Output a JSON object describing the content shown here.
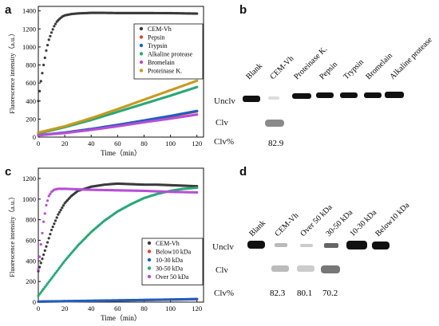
{
  "panels": {
    "a": "a",
    "b": "b",
    "c": "c",
    "d": "d"
  },
  "chart_data": [
    {
      "panel": "a",
      "type": "scatter",
      "title": "",
      "xlabel": "Time（min）",
      "ylabel": "Fluorescence intensity（a.u.）",
      "xlim": [
        0,
        125
      ],
      "ylim": [
        0,
        1450
      ],
      "xticks": [
        "0",
        "20",
        "40",
        "60",
        "80",
        "100",
        "120"
      ],
      "yticks": [
        "0",
        "200",
        "400",
        "600",
        "800",
        "1000",
        "1200",
        "1400"
      ],
      "legend_position": "top-right",
      "series": [
        {
          "name": "CEM-Vh",
          "color": "#3a3a3a",
          "x": [
            0,
            2,
            4,
            6,
            8,
            10,
            12,
            14,
            16,
            18,
            20,
            25,
            30,
            40,
            50,
            60,
            80,
            100,
            120
          ],
          "y": [
            400,
            620,
            800,
            960,
            1080,
            1160,
            1230,
            1280,
            1310,
            1335,
            1350,
            1365,
            1372,
            1378,
            1378,
            1376,
            1376,
            1375,
            1370
          ]
        },
        {
          "name": "Pepsin",
          "color": "#e0452b",
          "x": [
            0,
            20,
            40,
            60,
            80,
            100,
            120
          ],
          "y": [
            20,
            50,
            90,
            135,
            180,
            230,
            285
          ]
        },
        {
          "name": "Trypsin",
          "color": "#1f5fbf",
          "x": [
            0,
            20,
            40,
            60,
            80,
            100,
            120
          ],
          "y": [
            20,
            50,
            90,
            135,
            185,
            235,
            290
          ]
        },
        {
          "name": "Alkaline protease",
          "color": "#2aa876",
          "x": [
            0,
            20,
            40,
            60,
            80,
            100,
            120
          ],
          "y": [
            40,
            110,
            190,
            280,
            370,
            460,
            555
          ]
        },
        {
          "name": "Bromelain",
          "color": "#b64fd6",
          "x": [
            0,
            20,
            40,
            60,
            80,
            100,
            120
          ],
          "y": [
            20,
            45,
            80,
            120,
            165,
            205,
            250
          ]
        },
        {
          "name": "Proteinase K.",
          "color": "#c79a1e",
          "x": [
            0,
            20,
            40,
            60,
            80,
            100,
            120
          ],
          "y": [
            50,
            120,
            210,
            310,
            415,
            520,
            625
          ]
        }
      ]
    },
    {
      "panel": "c",
      "type": "scatter",
      "title": "",
      "xlabel": "Time（min）",
      "ylabel": "Fluorescence intensity（a.u.）",
      "xlim": [
        0,
        125
      ],
      "ylim": [
        0,
        1300
      ],
      "xticks": [
        "0",
        "20",
        "40",
        "60",
        "80",
        "100",
        "120"
      ],
      "yticks": [
        "0",
        "200",
        "400",
        "600",
        "800",
        "1000",
        "1200"
      ],
      "legend_position": "bottom-right",
      "series": [
        {
          "name": "CEM-Vh",
          "color": "#3a3a3a",
          "x": [
            0,
            3,
            6,
            10,
            15,
            20,
            25,
            30,
            40,
            50,
            60,
            70,
            80,
            90,
            100,
            110,
            120
          ],
          "y": [
            300,
            420,
            540,
            700,
            850,
            960,
            1030,
            1080,
            1120,
            1140,
            1150,
            1145,
            1140,
            1140,
            1135,
            1130,
            1125
          ]
        },
        {
          "name": "Below10 kDa",
          "color": "#e0452b",
          "x": [
            0,
            20,
            40,
            60,
            80,
            100,
            120
          ],
          "y": [
            5,
            8,
            12,
            16,
            20,
            24,
            28
          ]
        },
        {
          "name": "10-30 kDa",
          "color": "#1f5fbf",
          "x": [
            0,
            20,
            40,
            60,
            80,
            100,
            120
          ],
          "y": [
            5,
            9,
            13,
            17,
            21,
            25,
            30
          ]
        },
        {
          "name": "30-50 kDa",
          "color": "#2aa876",
          "x": [
            0,
            10,
            20,
            30,
            40,
            50,
            60,
            70,
            80,
            90,
            100,
            110,
            120
          ],
          "y": [
            60,
            230,
            400,
            550,
            680,
            790,
            880,
            950,
            1010,
            1050,
            1080,
            1100,
            1110
          ]
        },
        {
          "name": "Over 50 kDa",
          "color": "#b64fd6",
          "x": [
            0,
            2,
            4,
            6,
            8,
            10,
            12,
            15,
            20,
            30,
            40,
            60,
            80,
            100,
            120
          ],
          "y": [
            320,
            560,
            780,
            940,
            1030,
            1070,
            1090,
            1100,
            1100,
            1095,
            1090,
            1085,
            1080,
            1070,
            1065
          ]
        }
      ]
    }
  ],
  "gel_b": {
    "lanes": [
      "Blank",
      "CEM-Vh",
      "Proteinase K.",
      "Pepsin",
      "Trypsin",
      "Bromelain",
      "Alkaline protease"
    ],
    "row_labels": {
      "unclv": "Unclv",
      "clv": "Clv",
      "clv_pct": "Clv%"
    },
    "clv_percent": [
      "",
      "82.9",
      "",
      "",
      "",
      "",
      ""
    ]
  },
  "gel_d": {
    "lanes": [
      "Blank",
      "CEM-Vh",
      "Over 50 kDa",
      "30-50 kDa",
      "10-30 kDa",
      "Below10 kDa"
    ],
    "row_labels": {
      "unclv": "Unclv",
      "clv": "Clv",
      "clv_pct": "Clv%"
    },
    "clv_percent": [
      "",
      "82.3",
      "80.1",
      "70.2",
      "",
      ""
    ]
  }
}
